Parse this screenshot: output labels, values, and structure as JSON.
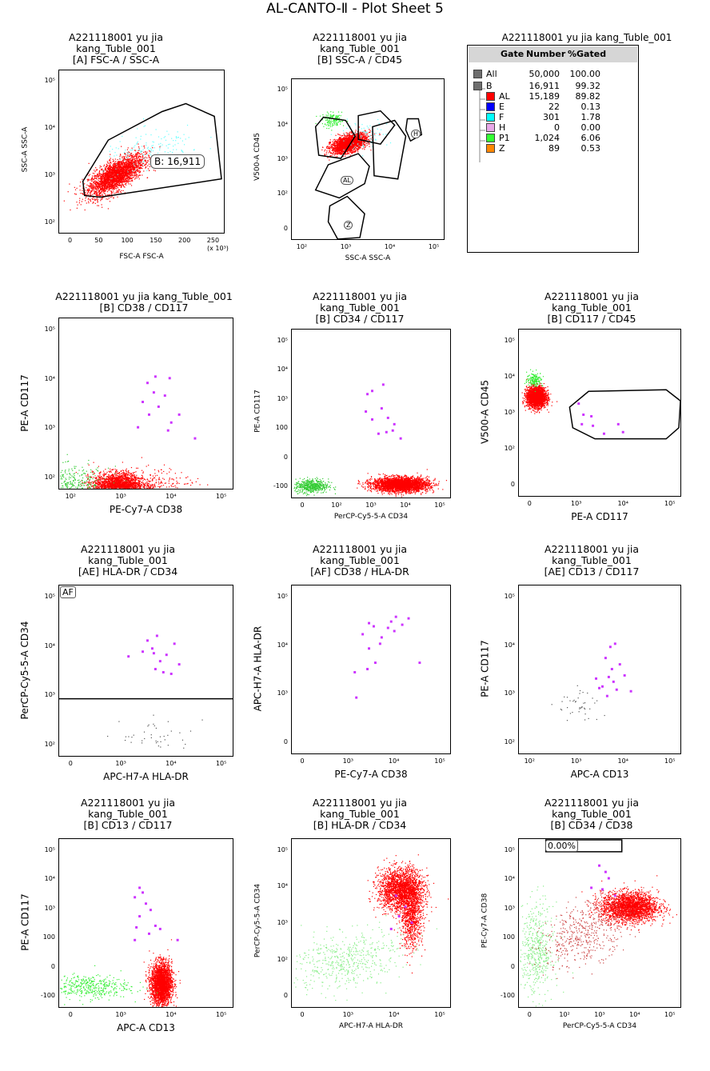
{
  "sheet_title": "AL-CANTO-Ⅱ - Plot Sheet 5",
  "stats": {
    "title": "A221118001 yu jia kang_Tuble_001",
    "headers": {
      "gate": "Gate",
      "number": "Number",
      "pct": "%Gated"
    },
    "rows": [
      {
        "gate": "All",
        "number": "50,000",
        "pct": "100.00",
        "color": "#6e6e6e",
        "level": 0
      },
      {
        "gate": "B",
        "number": "16,911",
        "pct": "99.32",
        "color": "#6e6e6e",
        "level": 0
      },
      {
        "gate": "AL",
        "number": "15,189",
        "pct": "89.82",
        "color": "#ff0000",
        "level": 1
      },
      {
        "gate": "E",
        "number": "22",
        "pct": "0.13",
        "color": "#0000ff",
        "level": 1
      },
      {
        "gate": "F",
        "number": "301",
        "pct": "1.78",
        "color": "#00ffff",
        "level": 1
      },
      {
        "gate": "H",
        "number": "0",
        "pct": "0.00",
        "color": "#e8a8e8",
        "level": 1
      },
      {
        "gate": "P1",
        "number": "1,024",
        "pct": "6.06",
        "color": "#33ff33",
        "level": 1
      },
      {
        "gate": "Z",
        "number": "89",
        "pct": "0.53",
        "color": "#ff8800",
        "level": 1
      }
    ]
  },
  "chart_data": [
    {
      "type": "scatter",
      "title": [
        "A221118001 yu jia",
        "kang_Tuble_001",
        "[A] FSC-A / SSC-A"
      ],
      "xlabel": "FSC-A FSC-A",
      "ylabel": "SSC-A SSC-A",
      "xscale": "linear",
      "yscale": "log",
      "xticks": [
        "0",
        "50",
        "100",
        "150",
        "200",
        "250"
      ],
      "xunit": "(x 10³)",
      "yticks": [
        "10²",
        "10³",
        "10⁴",
        "10⁵"
      ],
      "populations": [
        {
          "color": "#ff0000",
          "cx": 90,
          "cy": 3.05,
          "sx": 22,
          "sy": 0.22,
          "n": 2800,
          "rho": 0.7
        },
        {
          "color": "#66ffff",
          "cx": 150,
          "cy": 3.55,
          "sx": 40,
          "sy": 0.25,
          "n": 160,
          "rho": 0.4
        }
      ],
      "gate_labels": [
        {
          "text": "B: 16,911"
        }
      ]
    },
    {
      "type": "scatter",
      "title": [
        "A221118001 yu jia",
        "kang_Tuble_001",
        "[B] SSC-A / CD45"
      ],
      "xlabel": "SSC-A SSC-A",
      "ylabel": "V500-A CD45",
      "xscale": "log",
      "yscale": "biex",
      "xticks": [
        "10²",
        "10³",
        "10⁴",
        "10⁵"
      ],
      "yticks": [
        "0",
        "10²",
        "10³",
        "10⁴",
        "10⁵"
      ],
      "populations": [
        {
          "color": "#ff0000",
          "cx": 3.1,
          "cy": 3.02,
          "sx": 0.2,
          "sy": 0.17,
          "n": 2200,
          "rho": 0.5
        },
        {
          "color": "#33ee33",
          "cx": 2.75,
          "cy": 3.85,
          "sx": 0.13,
          "sy": 0.12,
          "n": 150,
          "rho": 0
        },
        {
          "color": "#66ffff",
          "cx": 3.4,
          "cy": 3.3,
          "sx": 0.3,
          "sy": 0.25,
          "n": 80,
          "rho": 0
        }
      ],
      "gate_labels": [
        {
          "text": "AL"
        },
        {
          "text": "Z"
        },
        {
          "text": "H"
        }
      ]
    },
    {
      "type": "scatter",
      "title": [
        "A221118001 yu jia kang_Tuble_001",
        "[B] CD38 / CD117"
      ],
      "xlabel": "PE-Cy7-A CD38",
      "ylabel": "PE-A CD117",
      "xscale": "log",
      "yscale": "log",
      "xticks": [
        "10²",
        "10³",
        "10⁴",
        "10⁵"
      ],
      "yticks": [
        "10²",
        "10³",
        "10⁴",
        "10⁵"
      ],
      "populations": [
        {
          "color": "#ff0000",
          "cx": 2.98,
          "cy": 1.85,
          "sx": 0.25,
          "sy": 0.14,
          "n": 2600,
          "rho": 0
        },
        {
          "color": "#33cc33",
          "cx": 2.1,
          "cy": 1.85,
          "sx": 0.35,
          "sy": 0.2,
          "n": 400,
          "rho": 0
        },
        {
          "color": "#ff0000",
          "cx": 3.5,
          "cy": 1.8,
          "sx": 0.5,
          "sy": 0.18,
          "n": 500,
          "rho": 0
        }
      ]
    },
    {
      "type": "scatter",
      "title": [
        "A221118001 yu jia",
        "kang_Tuble_001",
        "[B] CD34 / CD117"
      ],
      "xlabel": "PerCP-Cy5-5-A CD34",
      "ylabel": "PE-A CD117",
      "xscale": "biex",
      "yscale": "biex",
      "xticks": [
        "0",
        "10²",
        "10³",
        "10⁴",
        "10⁵"
      ],
      "yticks": [
        "-100",
        "0",
        "100",
        "10³",
        "10⁴",
        "10⁵"
      ],
      "populations": [
        {
          "color": "#ff0000",
          "cx": 3.5,
          "cy": 0.05,
          "sx": 0.5,
          "sy": 0.12,
          "n": 3000,
          "rho": 0
        },
        {
          "color": "#33cc33",
          "cx": 0.3,
          "cy": 0,
          "sx": 0.3,
          "sy": 0.12,
          "n": 500,
          "rho": 0
        }
      ]
    },
    {
      "type": "scatter",
      "title": [
        "A221118001 yu jia",
        "kang_Tuble_001",
        "[B] CD117 / CD45"
      ],
      "xlabel": "PE-A CD117",
      "ylabel": "V500-A CD45",
      "xscale": "biex",
      "yscale": "biex",
      "xticks": [
        "0",
        "10³",
        "10⁴",
        "10⁵"
      ],
      "yticks": [
        "0",
        "10²",
        "10³",
        "10⁴",
        "10⁵"
      ],
      "populations": [
        {
          "color": "#ff0000",
          "cx": 0.2,
          "cy": 3.0,
          "sx": 0.17,
          "sy": 0.17,
          "n": 2400,
          "rho": 0
        },
        {
          "color": "#33ee33",
          "cx": 0.15,
          "cy": 3.6,
          "sx": 0.14,
          "sy": 0.12,
          "n": 160,
          "rho": 0
        }
      ]
    },
    {
      "type": "scatter",
      "title": [
        "A221118001 yu jia",
        "kang_Tuble_001",
        "[AE] HLA-DR / CD34"
      ],
      "xlabel": "APC-H7-A HLA-DR",
      "ylabel": "PerCP-Cy5-5-A CD34",
      "xscale": "biex",
      "yscale": "log",
      "xticks": [
        "0",
        "10³",
        "10⁴",
        "10⁵"
      ],
      "yticks": [
        "10²",
        "10³",
        "10⁴",
        "10⁵"
      ],
      "populations": [
        {
          "color": "#555555",
          "cx": 2.8,
          "cy": 2.2,
          "sx": 0.6,
          "sy": 0.2,
          "n": 40,
          "rho": 0
        }
      ],
      "gate_labels": [
        {
          "text": "AF"
        }
      ]
    },
    {
      "type": "scatter",
      "title": [
        "A221118001 yu jia",
        "kang_Tuble_001",
        "[AF] CD38 / HLA-DR"
      ],
      "xlabel": "PE-Cy7-A CD38",
      "ylabel": "APC-H7-A HLA-DR",
      "xscale": "biex",
      "yscale": "biex",
      "xticks": [
        "0",
        "10³",
        "10⁴",
        "10⁵"
      ],
      "yticks": [
        "0",
        "10³",
        "10⁴",
        "10⁵"
      ]
    },
    {
      "type": "scatter",
      "title": [
        "A221118001 yu jia",
        "kang_Tuble_001",
        "[AE] CD13 / CD117"
      ],
      "xlabel": "APC-A CD13",
      "ylabel": "PE-A CD117",
      "xscale": "log",
      "yscale": "log",
      "xticks": [
        "10²",
        "10³",
        "10⁴",
        "10⁵"
      ],
      "yticks": [
        "10²",
        "10³",
        "10⁴",
        "10⁵"
      ],
      "populations": [
        {
          "color": "#555555",
          "cx": 3.1,
          "cy": 2.8,
          "sx": 0.25,
          "sy": 0.2,
          "n": 40,
          "rho": 0
        }
      ]
    },
    {
      "type": "scatter",
      "title": [
        "A221118001 yu jia",
        "kang_Tuble_001",
        "[B] CD13 / CD117"
      ],
      "xlabel": "APC-A CD13",
      "ylabel": "PE-A CD117",
      "xscale": "biex",
      "yscale": "biex",
      "xticks": [
        "0",
        "10³",
        "10⁴",
        "10⁵"
      ],
      "yticks": [
        "-100",
        "0",
        "100",
        "10³",
        "10⁴",
        "10⁵"
      ],
      "populations": [
        {
          "color": "#ff0000",
          "cx": 2.95,
          "cy": 0.4,
          "sx": 0.17,
          "sy": 0.35,
          "n": 2600,
          "rho": 0
        },
        {
          "color": "#33ee33",
          "cx": 0.5,
          "cy": 0.3,
          "sx": 0.7,
          "sy": 0.2,
          "n": 400,
          "rho": 0
        }
      ]
    },
    {
      "type": "scatter",
      "title": [
        "A221118001 yu jia",
        "kang_Tuble_001",
        "[B] HLA-DR / CD34"
      ],
      "xlabel": "APC-H7-A HLA-DR",
      "ylabel": "PerCP-Cy5-5-A CD34",
      "xscale": "biex",
      "yscale": "biex",
      "xticks": [
        "0",
        "10³",
        "10⁴",
        "10⁵"
      ],
      "yticks": [
        "0",
        "10²",
        "10³",
        "10⁴",
        "10⁵"
      ],
      "populations": [
        {
          "color": "#ff0000",
          "cx": 3.5,
          "cy": 3.6,
          "sx": 0.4,
          "sy": 0.35,
          "n": 2000,
          "rho": 0
        },
        {
          "color": "#ff0000",
          "cx": 3.9,
          "cy": 2.8,
          "sx": 0.2,
          "sy": 0.6,
          "n": 1000,
          "rho": 0
        },
        {
          "color": "#88ee88",
          "cx": 1.5,
          "cy": 1.2,
          "sx": 1.0,
          "sy": 0.5,
          "n": 500,
          "rho": 0.3
        }
      ]
    },
    {
      "type": "scatter",
      "title": [
        "A221118001 yu jia",
        "kang_Tuble_001",
        "[B] CD34 / CD38"
      ],
      "xlabel": "PerCP-Cy5-5-A CD34",
      "ylabel": "PE-Cy7-A CD38",
      "xscale": "biex",
      "yscale": "biex",
      "xticks": [
        "0",
        "10²",
        "10³",
        "10⁴",
        "10⁵"
      ],
      "yticks": [
        "-100",
        "0",
        "100",
        "10³",
        "10⁴",
        "10⁵"
      ],
      "populations": [
        {
          "color": "#ff0000",
          "cx": 3.5,
          "cy": 3.0,
          "sx": 0.5,
          "sy": 0.25,
          "n": 2400,
          "rho": 0
        },
        {
          "color": "#88ee88",
          "cx": 0.2,
          "cy": 1.5,
          "sx": 0.3,
          "sy": 0.8,
          "n": 500,
          "rho": 0
        },
        {
          "color": "#cc4444",
          "cx": 2.0,
          "cy": 2.2,
          "sx": 0.8,
          "sy": 0.6,
          "n": 500,
          "rho": 0.5
        }
      ],
      "gate_labels": [
        {
          "text": "0.00%"
        }
      ]
    }
  ]
}
